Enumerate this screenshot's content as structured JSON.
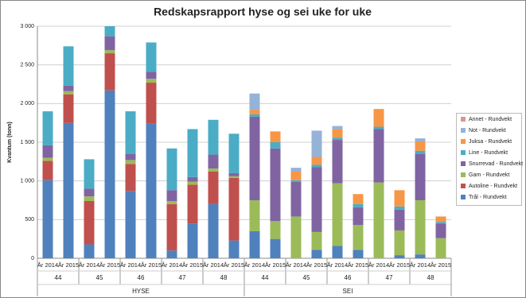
{
  "chart_data": {
    "type": "stacked_bar",
    "title": "Redskapsrapport hyse og sei uke for uke",
    "y_label": "Kvantum (tonn)",
    "categories": [
      "År 2014",
      "År 2015",
      "År 2014",
      "År 2015",
      "År 2014",
      "År 2015",
      "År 2014",
      "År 2015",
      "År 2014",
      "År 2015",
      "År 2014",
      "År 2015",
      "År 2014",
      "År 2015",
      "År 2014",
      "År 2015",
      "År 2014",
      "År 2015",
      "År 2014",
      "År 2015"
    ],
    "weeks": [
      "44",
      "45",
      "46",
      "47",
      "48",
      "44",
      "45",
      "46",
      "47",
      "48"
    ],
    "species": [
      "HYSE",
      "SEI"
    ],
    "ylim": [
      0,
      3000
    ],
    "yticks": [
      0,
      500,
      {
        "value": 1000,
        "label": "1 000"
      },
      {
        "value": 1500,
        "label": "1 500"
      },
      {
        "value": 2000,
        "label": "2 000"
      },
      {
        "value": 2500,
        "label": "2 500"
      },
      {
        "value": 3000,
        "label": "3 000"
      }
    ],
    "grid": true,
    "legend": "right",
    "series": [
      {
        "name": "Trål - Rundvekt",
        "color": "#4f81bd",
        "values": [
          1010,
          1750,
          180,
          2170,
          870,
          1740,
          100,
          450,
          700,
          230,
          350,
          250,
          0,
          110,
          160,
          110,
          0,
          40,
          50,
          0
        ]
      },
      {
        "name": "Autoline - Rundvekt",
        "color": "#c0504d",
        "values": [
          250,
          370,
          560,
          480,
          350,
          530,
          600,
          500,
          420,
          810,
          0,
          0,
          0,
          0,
          0,
          0,
          0,
          0,
          0,
          0
        ]
      },
      {
        "name": "Garn - Rundvekt",
        "color": "#9bbb59",
        "values": [
          40,
          40,
          60,
          40,
          50,
          50,
          40,
          40,
          40,
          20,
          400,
          230,
          540,
          230,
          810,
          320,
          980,
          320,
          700,
          260
        ]
      },
      {
        "name": "Snurrevad - Rundvekt",
        "color": "#8064a2",
        "values": [
          160,
          70,
          100,
          180,
          80,
          90,
          140,
          60,
          180,
          40,
          1080,
          940,
          450,
          840,
          560,
          230,
          690,
          270,
          600,
          190
        ]
      },
      {
        "name": "Line - Rundvekt",
        "color": "#4bacc6",
        "values": [
          440,
          510,
          380,
          130,
          550,
          380,
          540,
          620,
          450,
          510,
          30,
          80,
          20,
          30,
          30,
          40,
          30,
          40,
          40,
          20
        ]
      },
      {
        "name": "Juksa - Rundvekt",
        "color": "#f79646",
        "values": [
          0,
          0,
          0,
          0,
          0,
          0,
          0,
          0,
          0,
          0,
          60,
          140,
          110,
          100,
          110,
          130,
          230,
          210,
          120,
          70
        ]
      },
      {
        "name": "Not - Rundvekt",
        "color": "#95b3d7",
        "values": [
          0,
          0,
          0,
          0,
          0,
          0,
          0,
          0,
          0,
          0,
          210,
          0,
          50,
          340,
          40,
          0,
          0,
          0,
          40,
          0
        ]
      },
      {
        "name": "Annet - Rundvekt",
        "color": "#d99694",
        "values": [
          0,
          0,
          0,
          0,
          0,
          0,
          0,
          0,
          0,
          0,
          0,
          0,
          0,
          0,
          0,
          0,
          0,
          0,
          0,
          0
        ]
      }
    ]
  }
}
